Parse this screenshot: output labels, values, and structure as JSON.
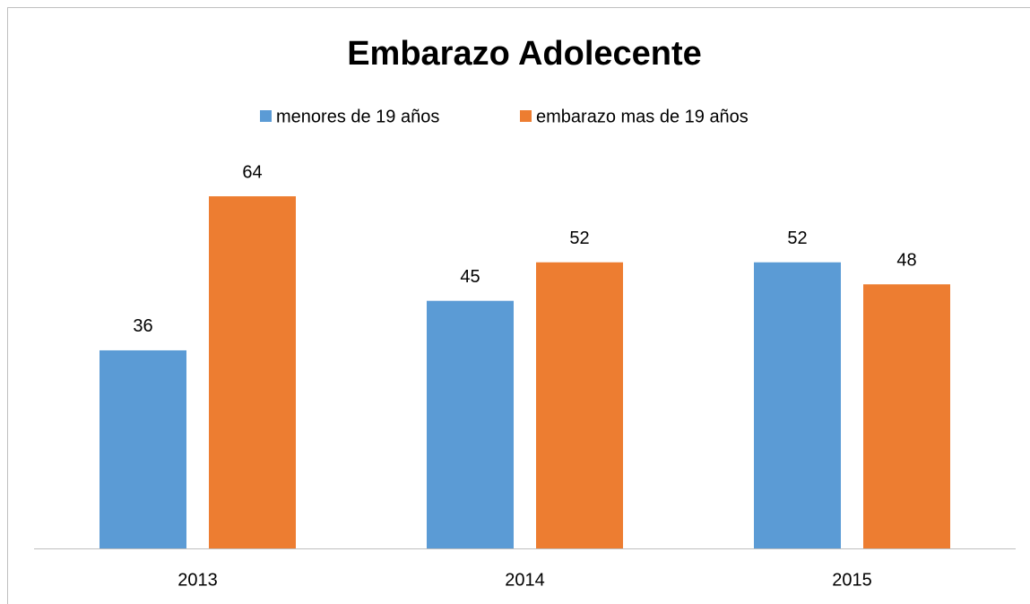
{
  "chart_data": {
    "type": "bar",
    "title": "Embarazo Adolecente",
    "categories": [
      "2013",
      "2014",
      "2015"
    ],
    "series": [
      {
        "name": "menores de 19 años",
        "color": "#5b9bd5",
        "values": [
          36,
          45,
          52
        ]
      },
      {
        "name": "embarazo mas de 19 años",
        "color": "#ed7d31",
        "values": [
          64,
          52,
          48
        ]
      }
    ]
  }
}
